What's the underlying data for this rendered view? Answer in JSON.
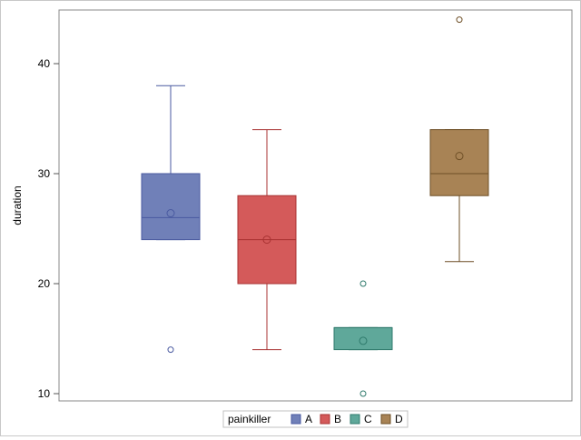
{
  "chart_data": {
    "type": "box",
    "ylabel": "duration",
    "ylim": [
      9,
      45
    ],
    "yticks": [
      10,
      20,
      30,
      40
    ],
    "legend": {
      "title": "painkiller",
      "placement": "bottom-center"
    },
    "groups": [
      {
        "name": "A",
        "color": "#7080b8",
        "edge": "#4a5aa0",
        "whisker_low": 24,
        "q1": 24,
        "median": 26,
        "q3": 30,
        "whisker_high": 38,
        "mean": 26.4,
        "outliers": [
          14
        ]
      },
      {
        "name": "B",
        "color": "#d45a5a",
        "edge": "#a83232",
        "whisker_low": 14,
        "q1": 20,
        "median": 24,
        "q3": 28,
        "whisker_high": 34,
        "mean": 24,
        "outliers": []
      },
      {
        "name": "C",
        "color": "#5fa89a",
        "edge": "#2f7a6c",
        "whisker_low": 14,
        "q1": 14,
        "median": 16,
        "q3": 16,
        "whisker_high": 16,
        "mean": 14.8,
        "outliers": [
          20,
          10
        ]
      },
      {
        "name": "D",
        "color": "#a88355",
        "edge": "#6e4f26",
        "whisker_low": 22,
        "q1": 28,
        "median": 30,
        "q3": 34,
        "whisker_high": 34,
        "mean": 31.6,
        "outliers": [
          44
        ]
      }
    ]
  }
}
